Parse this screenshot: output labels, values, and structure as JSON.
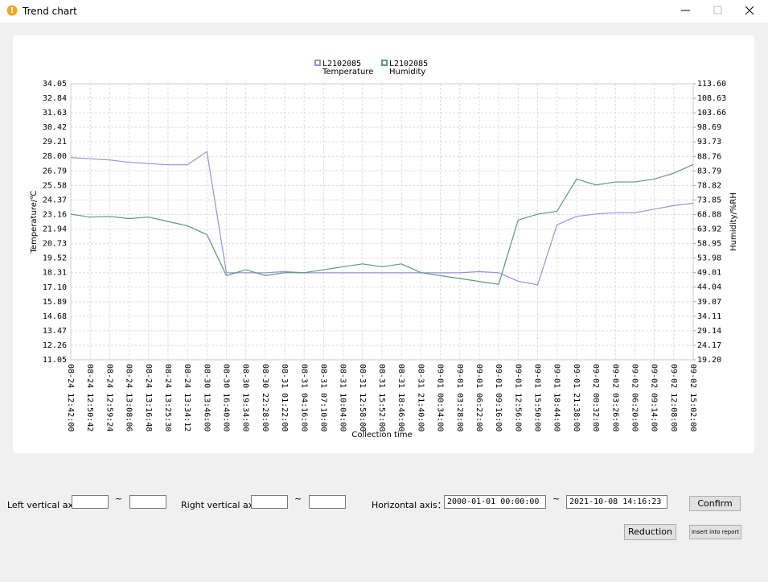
{
  "window": {
    "title": "Trend chart"
  },
  "chart_data": {
    "type": "line",
    "xlabel": "Collection time",
    "ylabel": "Temperature/℃",
    "y2label": "Humidity/%RH",
    "categories": [
      "08-24 12:42:00",
      "08-24 12:50:42",
      "08-24 12:59:24",
      "08-24 13:08:06",
      "08-24 13:16:48",
      "08-24 13:25:30",
      "08-24 13:34:12",
      "08-30 13:46:00",
      "08-30 16:40:00",
      "08-30 19:34:00",
      "08-30 22:28:00",
      "08-31 01:22:00",
      "08-31 04:16:00",
      "08-31 07:10:00",
      "08-31 10:04:00",
      "08-31 12:58:00",
      "08-31 15:52:00",
      "08-31 18:46:00",
      "08-31 21:40:00",
      "09-01 00:34:00",
      "09-01 03:28:00",
      "09-01 06:22:00",
      "09-01 09:16:00",
      "09-01 12:56:00",
      "09-01 15:50:00",
      "09-01 18:44:00",
      "09-01 21:38:00",
      "09-02 00:32:00",
      "09-02 03:26:00",
      "09-02 06:20:00",
      "09-02 09:14:00",
      "09-02 12:08:00",
      "09-02 15:02:00"
    ],
    "series": [
      {
        "name": "Temperature",
        "logger": "L2102085",
        "color": "#9b90d9",
        "axis": "y",
        "values": [
          27.9,
          27.8,
          27.7,
          27.5,
          27.4,
          27.3,
          27.3,
          28.4,
          18.3,
          18.3,
          18.3,
          18.4,
          18.3,
          18.3,
          18.3,
          18.3,
          18.3,
          18.3,
          18.3,
          18.3,
          18.3,
          18.4,
          18.3,
          17.6,
          17.3,
          22.3,
          23.0,
          23.2,
          23.3,
          23.3,
          23.6,
          23.9,
          24.1
        ]
      },
      {
        "name": "Humidity",
        "logger": "L2102085",
        "color": "#5b9a7c",
        "axis": "y2",
        "values": [
          69,
          68,
          68.2,
          67.5,
          68,
          66.5,
          65,
          62,
          48,
          50,
          48,
          49,
          49,
          50,
          51,
          52,
          51,
          52,
          49,
          48,
          47,
          46,
          45,
          67,
          69,
          70,
          81,
          79,
          80,
          80,
          81,
          83,
          86
        ]
      }
    ],
    "ylim": [
      11.05,
      34.05
    ],
    "yticks": [
      {
        "value": 34.05,
        "label": "34.05"
      },
      32.84,
      31.63,
      30.42,
      29.21,
      {
        "value": 28,
        "label": "28.00"
      },
      26.79,
      25.58,
      24.37,
      23.16,
      21.94,
      20.73,
      19.52,
      18.31,
      {
        "value": 17.1,
        "label": "17.10"
      },
      15.89,
      14.68,
      13.47,
      12.26,
      11.05
    ],
    "y2lim": [
      19.2,
      113.6
    ],
    "y2ticks": [
      {
        "value": 113.6,
        "label": "113.60"
      },
      108.63,
      103.66,
      98.69,
      93.73,
      88.76,
      83.79,
      78.82,
      73.85,
      68.88,
      63.92,
      58.95,
      53.98,
      49.01,
      44.04,
      39.07,
      34.11,
      29.14,
      24.17,
      {
        "value": 19.2,
        "label": "19.20"
      }
    ],
    "grid": true
  },
  "controls": {
    "left_axis": "Left vertical axis：",
    "right_axis": "Right vertical axis：",
    "horizontal_axis": "Horizontal axis：",
    "separator": "~",
    "start_time": "2000-01-01 00:00:00",
    "end_time": "2021-10-08 14:16:23",
    "confirm": "Confirm",
    "reduction": "Reduction",
    "insert": "Insert into report"
  }
}
